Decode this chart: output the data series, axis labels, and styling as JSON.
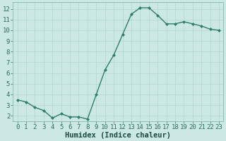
{
  "x": [
    0,
    1,
    2,
    3,
    4,
    5,
    6,
    7,
    8,
    9,
    10,
    11,
    12,
    13,
    14,
    15,
    16,
    17,
    18,
    19,
    20,
    21,
    22,
    23
  ],
  "y": [
    3.5,
    3.3,
    2.8,
    2.5,
    1.8,
    2.2,
    1.9,
    1.9,
    1.7,
    4.0,
    6.3,
    7.7,
    9.6,
    11.5,
    12.1,
    12.1,
    11.4,
    10.6,
    10.6,
    10.8,
    10.6,
    10.4,
    10.1,
    10.0
  ],
  "line_color": "#2e7d6e",
  "bg_color": "#cce8e4",
  "grid_color": "#b8d8d4",
  "xlabel": "Humidex (Indice chaleur)",
  "ylim": [
    1.5,
    12.6
  ],
  "xlim": [
    -0.5,
    23.5
  ],
  "yticks": [
    2,
    3,
    4,
    5,
    6,
    7,
    8,
    9,
    10,
    11,
    12
  ],
  "xticks": [
    0,
    1,
    2,
    3,
    4,
    5,
    6,
    7,
    8,
    9,
    10,
    11,
    12,
    13,
    14,
    15,
    16,
    17,
    18,
    19,
    20,
    21,
    22,
    23
  ],
  "marker": "D",
  "marker_size": 2.0,
  "line_width": 1.0,
  "xlabel_fontsize": 7.5,
  "tick_fontsize": 6.5
}
